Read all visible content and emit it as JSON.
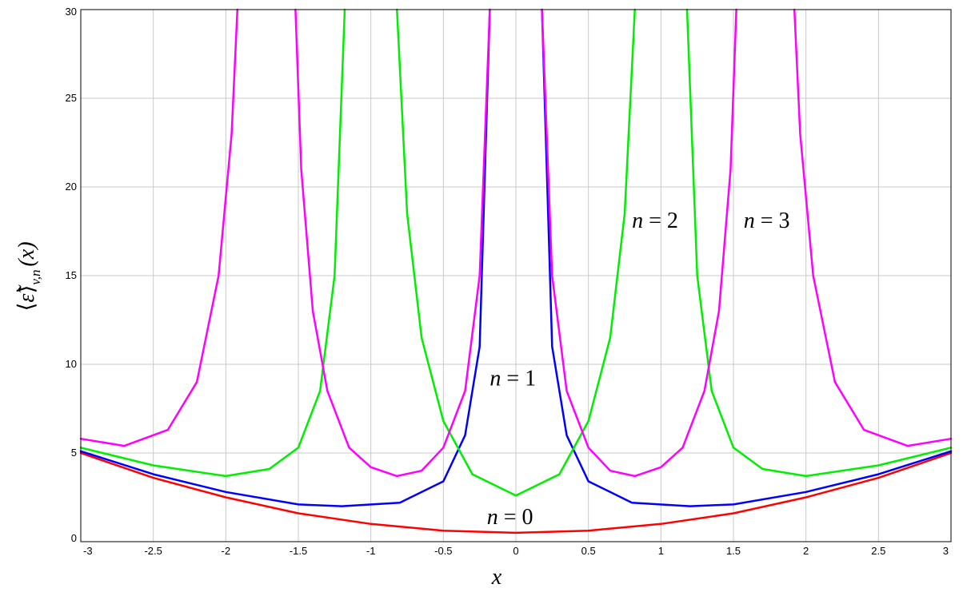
{
  "chart_data": {
    "type": "line",
    "xlabel": "x",
    "ylabel": {
      "bracket_open": "⟨",
      "symbol": "ε̃",
      "bracket_close": "⟩",
      "subscript": "v,n",
      "argument": "(x)"
    },
    "xlim": [
      -3,
      3
    ],
    "ylim": [
      0,
      30
    ],
    "x_ticks": [
      -3,
      -2.5,
      -2,
      -1.5,
      -1,
      -0.5,
      0,
      0.5,
      1,
      1.5,
      2,
      2.5,
      3
    ],
    "y_ticks": [
      0,
      5,
      10,
      15,
      20,
      25,
      30
    ],
    "grid": true,
    "series": [
      {
        "color": "#ff0000",
        "x": [
          -3,
          -2.5,
          -2,
          -1.5,
          -1,
          -0.5,
          0,
          0.5,
          1,
          1.5,
          2,
          2.5,
          3
        ],
        "y": [
          5.0,
          3.6,
          2.5,
          1.6,
          1.0,
          0.62,
          0.5,
          0.62,
          1.0,
          1.6,
          2.5,
          3.6,
          5.0
        ]
      },
      {
        "color": "#0000ff",
        "x": [
          -3,
          -2.5,
          -2,
          -1.5,
          -1.2,
          -0.8,
          -0.5,
          -0.35,
          -0.25,
          -0.18,
          0.18,
          0.25,
          0.35,
          0.5,
          0.8,
          1.2,
          1.5,
          2,
          2.5,
          3
        ],
        "y": [
          5.1,
          3.8,
          2.8,
          2.1,
          2.0,
          2.2,
          3.4,
          6.0,
          11.0,
          30.0,
          30.0,
          11.0,
          6.0,
          3.4,
          2.2,
          2.0,
          2.1,
          2.8,
          3.8,
          5.1
        ],
        "segments": [
          [
            0,
            9
          ],
          [
            10,
            19
          ]
        ]
      },
      {
        "color": "#00ee00",
        "x": [
          -3,
          -2.5,
          -2,
          -1.7,
          -1.5,
          -1.35,
          -1.25,
          -1.18,
          -0.82,
          -0.75,
          -0.65,
          -0.5,
          -0.3,
          0,
          0.3,
          0.5,
          0.65,
          0.75,
          0.82,
          1.18,
          1.25,
          1.35,
          1.5,
          1.7,
          2,
          2.5,
          3
        ],
        "y": [
          5.3,
          4.3,
          3.7,
          4.1,
          5.3,
          8.5,
          15.0,
          30.0,
          30.0,
          18.5,
          11.5,
          6.8,
          3.8,
          2.6,
          3.8,
          6.8,
          11.5,
          18.5,
          30.0,
          30.0,
          15.0,
          8.5,
          5.3,
          4.1,
          3.7,
          4.3,
          5.3
        ],
        "segments": [
          [
            0,
            7
          ],
          [
            8,
            18
          ],
          [
            19,
            26
          ]
        ]
      },
      {
        "color": "#ff00ff",
        "x": [
          -3,
          -2.7,
          -2.4,
          -2.2,
          -2.05,
          -1.96,
          -1.92,
          -1.52,
          -1.48,
          -1.4,
          -1.3,
          -1.15,
          -1.0,
          -0.82,
          -0.65,
          -0.5,
          -0.35,
          -0.25,
          -0.18,
          0.18,
          0.25,
          0.35,
          0.5,
          0.65,
          0.82,
          1.0,
          1.15,
          1.3,
          1.4,
          1.48,
          1.52,
          1.92,
          1.96,
          2.05,
          2.2,
          2.4,
          2.7,
          3
        ],
        "y": [
          5.8,
          5.4,
          6.3,
          9.0,
          15.0,
          23.0,
          30.0,
          30.0,
          21.0,
          13.0,
          8.5,
          5.3,
          4.2,
          3.7,
          4.0,
          5.3,
          8.5,
          15.0,
          30.0,
          30.0,
          15.0,
          8.5,
          5.3,
          4.0,
          3.7,
          4.2,
          5.3,
          8.5,
          13.0,
          21.0,
          30.0,
          30.0,
          23.0,
          15.0,
          9.0,
          6.3,
          5.4,
          5.8
        ],
        "segments": [
          [
            0,
            6
          ],
          [
            7,
            18
          ],
          [
            19,
            30
          ],
          [
            31,
            37
          ]
        ]
      }
    ],
    "annotations": [
      {
        "var": "n",
        "eq": " = ",
        "val": "0",
        "x": -0.2,
        "y": 1.0
      },
      {
        "var": "n",
        "eq": " = ",
        "val": "1",
        "x": -0.18,
        "y": 8.8
      },
      {
        "var": "n",
        "eq": " = ",
        "val": "2",
        "x": 0.8,
        "y": 17.7
      },
      {
        "var": "n",
        "eq": " = ",
        "val": "3",
        "x": 1.57,
        "y": 17.7
      }
    ]
  }
}
